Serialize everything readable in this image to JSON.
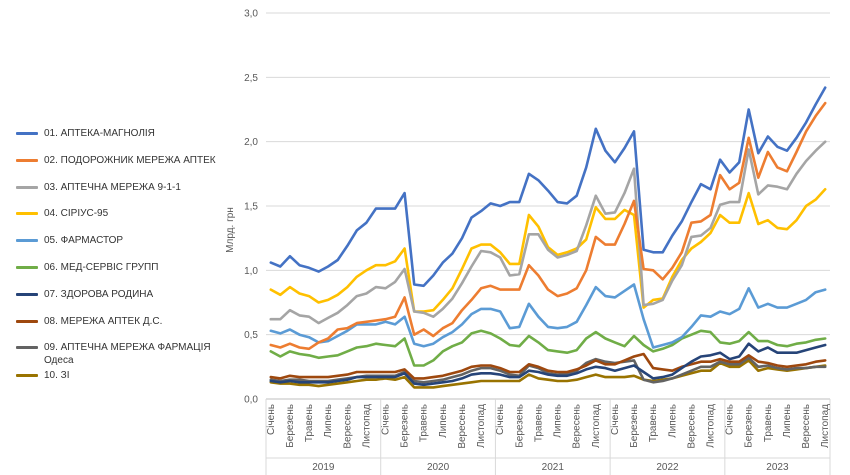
{
  "chart_data": {
    "type": "line",
    "title": "",
    "xlabel": "",
    "ylabel": "Млрд. грн",
    "ylim": [
      0,
      3
    ],
    "yticks": [
      "0,0",
      "0,5",
      "1,0",
      "1,5",
      "2,0",
      "2,5",
      "3,0"
    ],
    "grid": "horizontal",
    "legend_position": "left",
    "x_month_labels": [
      "Січень",
      "Березень",
      "Травень",
      "Липень",
      "Вересень",
      "Листопад"
    ],
    "years": [
      "2019",
      "2020",
      "2021",
      "2022",
      "2023"
    ],
    "x": [
      "2019-01",
      "2019-02",
      "2019-03",
      "2019-04",
      "2019-05",
      "2019-06",
      "2019-07",
      "2019-08",
      "2019-09",
      "2019-10",
      "2019-11",
      "2019-12",
      "2020-01",
      "2020-02",
      "2020-03",
      "2020-04",
      "2020-05",
      "2020-06",
      "2020-07",
      "2020-08",
      "2020-09",
      "2020-10",
      "2020-11",
      "2020-12",
      "2021-01",
      "2021-02",
      "2021-03",
      "2021-04",
      "2021-05",
      "2021-06",
      "2021-07",
      "2021-08",
      "2021-09",
      "2021-10",
      "2021-11",
      "2021-12",
      "2022-01",
      "2022-02",
      "2022-03",
      "2022-04",
      "2022-05",
      "2022-06",
      "2022-07",
      "2022-08",
      "2022-09",
      "2022-10",
      "2022-11",
      "2022-12",
      "2023-01",
      "2023-02",
      "2023-03",
      "2023-04",
      "2023-05",
      "2023-06",
      "2023-07",
      "2023-08",
      "2023-09",
      "2023-10",
      "2023-11"
    ],
    "series": [
      {
        "name": "01. АПТЕКА-МАГНОЛІЯ",
        "color": "#4472C4",
        "values": [
          1.06,
          1.03,
          1.11,
          1.04,
          1.02,
          0.99,
          1.03,
          1.08,
          1.19,
          1.31,
          1.37,
          1.48,
          1.48,
          1.48,
          1.6,
          0.89,
          0.88,
          0.96,
          1.06,
          1.13,
          1.25,
          1.41,
          1.46,
          1.52,
          1.5,
          1.53,
          1.53,
          1.75,
          1.7,
          1.62,
          1.53,
          1.52,
          1.58,
          1.8,
          2.1,
          1.93,
          1.84,
          1.95,
          2.08,
          1.16,
          1.14,
          1.14,
          1.27,
          1.38,
          1.53,
          1.67,
          1.63,
          1.86,
          1.76,
          1.84,
          2.25,
          1.91,
          2.04,
          1.96,
          1.93,
          2.03,
          2.15,
          2.29,
          2.42
        ]
      },
      {
        "name": "02. ПОДОРОЖНИК МЕРЕЖА АПТЕК",
        "color": "#ED7D31",
        "values": [
          0.42,
          0.4,
          0.43,
          0.4,
          0.39,
          0.44,
          0.47,
          0.54,
          0.55,
          0.59,
          0.6,
          0.61,
          0.62,
          0.64,
          0.79,
          0.5,
          0.54,
          0.49,
          0.55,
          0.59,
          0.69,
          0.77,
          0.86,
          0.88,
          0.85,
          0.85,
          0.85,
          1.04,
          0.96,
          0.85,
          0.8,
          0.82,
          0.86,
          1.0,
          1.26,
          1.2,
          1.2,
          1.36,
          1.54,
          1.01,
          1.0,
          0.93,
          1.02,
          1.14,
          1.37,
          1.38,
          1.43,
          1.74,
          1.63,
          1.68,
          2.03,
          1.72,
          1.92,
          1.8,
          1.77,
          1.92,
          2.08,
          2.2,
          2.3
        ]
      },
      {
        "name": "03. АПТЕЧНА МЕРЕЖА 9-1-1",
        "color": "#A5A5A5",
        "values": [
          0.62,
          0.62,
          0.69,
          0.65,
          0.64,
          0.59,
          0.63,
          0.67,
          0.73,
          0.8,
          0.82,
          0.87,
          0.86,
          0.91,
          1.01,
          0.68,
          0.67,
          0.64,
          0.7,
          0.78,
          0.9,
          1.03,
          1.15,
          1.14,
          1.1,
          0.96,
          0.97,
          1.28,
          1.28,
          1.16,
          1.1,
          1.12,
          1.15,
          1.35,
          1.58,
          1.44,
          1.45,
          1.6,
          1.79,
          0.73,
          0.74,
          0.77,
          0.92,
          1.04,
          1.26,
          1.27,
          1.33,
          1.51,
          1.53,
          1.53,
          1.94,
          1.59,
          1.66,
          1.65,
          1.63,
          1.75,
          1.85,
          1.93,
          2.0
        ]
      },
      {
        "name": "04. СІРІУС-95",
        "color": "#FFC000",
        "values": [
          0.85,
          0.81,
          0.87,
          0.82,
          0.8,
          0.75,
          0.77,
          0.81,
          0.87,
          0.95,
          1.0,
          1.04,
          1.04,
          1.07,
          1.17,
          0.68,
          0.68,
          0.69,
          0.77,
          0.86,
          1.01,
          1.17,
          1.2,
          1.2,
          1.14,
          1.05,
          1.05,
          1.43,
          1.34,
          1.18,
          1.12,
          1.14,
          1.17,
          1.24,
          1.49,
          1.4,
          1.4,
          1.47,
          1.43,
          0.71,
          0.77,
          0.78,
          0.95,
          1.08,
          1.17,
          1.22,
          1.29,
          1.43,
          1.37,
          1.37,
          1.6,
          1.36,
          1.39,
          1.33,
          1.32,
          1.39,
          1.5,
          1.55,
          1.63
        ]
      },
      {
        "name": "05. ФАРМАСТОР",
        "color": "#5B9BD5",
        "values": [
          0.53,
          0.51,
          0.54,
          0.5,
          0.48,
          0.44,
          0.45,
          0.49,
          0.53,
          0.58,
          0.58,
          0.58,
          0.6,
          0.58,
          0.64,
          0.43,
          0.41,
          0.43,
          0.48,
          0.52,
          0.58,
          0.66,
          0.7,
          0.7,
          0.68,
          0.55,
          0.56,
          0.74,
          0.64,
          0.56,
          0.55,
          0.56,
          0.6,
          0.73,
          0.87,
          0.8,
          0.79,
          0.84,
          0.89,
          0.62,
          0.4,
          0.42,
          0.44,
          0.48,
          0.56,
          0.65,
          0.64,
          0.68,
          0.66,
          0.7,
          0.86,
          0.71,
          0.74,
          0.71,
          0.71,
          0.74,
          0.77,
          0.83,
          0.85
        ]
      },
      {
        "name": "06. МЕД-СЕРВІС ГРУПП",
        "color": "#70AD47",
        "values": [
          0.37,
          0.33,
          0.37,
          0.35,
          0.34,
          0.32,
          0.33,
          0.34,
          0.37,
          0.4,
          0.41,
          0.43,
          0.42,
          0.41,
          0.47,
          0.26,
          0.26,
          0.3,
          0.37,
          0.41,
          0.44,
          0.51,
          0.53,
          0.51,
          0.47,
          0.42,
          0.41,
          0.49,
          0.44,
          0.38,
          0.37,
          0.36,
          0.38,
          0.47,
          0.52,
          0.47,
          0.44,
          0.41,
          0.49,
          0.42,
          0.37,
          0.39,
          0.42,
          0.47,
          0.5,
          0.53,
          0.52,
          0.44,
          0.43,
          0.45,
          0.52,
          0.45,
          0.45,
          0.42,
          0.41,
          0.43,
          0.44,
          0.46,
          0.47
        ]
      },
      {
        "name": "07. ЗДОРОВА РОДИНА",
        "color": "#264478",
        "values": [
          0.14,
          0.13,
          0.14,
          0.13,
          0.13,
          0.13,
          0.13,
          0.14,
          0.15,
          0.17,
          0.17,
          0.17,
          0.17,
          0.17,
          0.2,
          0.12,
          0.11,
          0.12,
          0.13,
          0.14,
          0.16,
          0.19,
          0.2,
          0.2,
          0.19,
          0.17,
          0.17,
          0.22,
          0.21,
          0.19,
          0.18,
          0.18,
          0.2,
          0.23,
          0.25,
          0.24,
          0.22,
          0.24,
          0.26,
          0.21,
          0.16,
          0.17,
          0.19,
          0.24,
          0.29,
          0.33,
          0.34,
          0.36,
          0.31,
          0.33,
          0.43,
          0.37,
          0.4,
          0.36,
          0.36,
          0.36,
          0.38,
          0.4,
          0.42
        ]
      },
      {
        "name": "08. МЕРЕЖА АПТЕК Д.С.",
        "color": "#9E480E",
        "values": [
          0.17,
          0.16,
          0.18,
          0.17,
          0.17,
          0.17,
          0.17,
          0.18,
          0.19,
          0.21,
          0.21,
          0.21,
          0.21,
          0.21,
          0.23,
          0.16,
          0.16,
          0.17,
          0.18,
          0.2,
          0.22,
          0.25,
          0.26,
          0.26,
          0.24,
          0.21,
          0.21,
          0.27,
          0.25,
          0.22,
          0.21,
          0.21,
          0.23,
          0.26,
          0.3,
          0.27,
          0.27,
          0.3,
          0.33,
          0.35,
          0.24,
          0.23,
          0.22,
          0.25,
          0.27,
          0.29,
          0.29,
          0.31,
          0.29,
          0.29,
          0.34,
          0.29,
          0.28,
          0.26,
          0.25,
          0.26,
          0.27,
          0.29,
          0.3
        ]
      },
      {
        "name": "09. АПТЕЧНА МЕРЕЖА ФАРМАЦІЯ Одеса",
        "color": "#636363",
        "values": [
          0.15,
          0.14,
          0.15,
          0.15,
          0.14,
          0.14,
          0.14,
          0.15,
          0.16,
          0.17,
          0.18,
          0.18,
          0.18,
          0.18,
          0.21,
          0.14,
          0.13,
          0.14,
          0.15,
          0.17,
          0.19,
          0.22,
          0.24,
          0.24,
          0.22,
          0.19,
          0.18,
          0.26,
          0.24,
          0.2,
          0.19,
          0.2,
          0.22,
          0.28,
          0.31,
          0.29,
          0.28,
          0.29,
          0.3,
          0.15,
          0.13,
          0.14,
          0.16,
          0.19,
          0.22,
          0.25,
          0.25,
          0.29,
          0.27,
          0.27,
          0.32,
          0.25,
          0.26,
          0.24,
          0.23,
          0.24,
          0.24,
          0.25,
          0.25
        ]
      },
      {
        "name": "10. ЗІ",
        "color": "#997300",
        "values": [
          0.13,
          0.12,
          0.12,
          0.11,
          0.11,
          0.1,
          0.11,
          0.12,
          0.13,
          0.14,
          0.15,
          0.15,
          0.16,
          0.15,
          0.17,
          0.09,
          0.09,
          0.09,
          0.1,
          0.11,
          0.12,
          0.13,
          0.14,
          0.14,
          0.14,
          0.14,
          0.14,
          0.19,
          0.16,
          0.15,
          0.14,
          0.14,
          0.15,
          0.17,
          0.19,
          0.17,
          0.17,
          0.17,
          0.18,
          0.15,
          0.14,
          0.15,
          0.16,
          0.18,
          0.2,
          0.22,
          0.22,
          0.28,
          0.25,
          0.25,
          0.3,
          0.22,
          0.24,
          0.23,
          0.22,
          0.23,
          0.24,
          0.25,
          0.26
        ]
      }
    ]
  }
}
